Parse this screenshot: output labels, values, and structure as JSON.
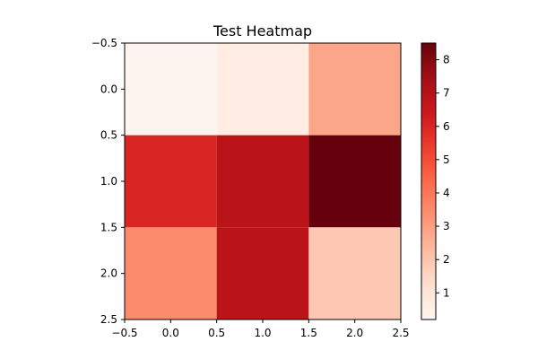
{
  "chart_data": {
    "type": "heatmap",
    "title": "Test Heatmap",
    "xlabel": "",
    "ylabel": "",
    "rows": 3,
    "cols": 3,
    "values": [
      [
        0.2,
        0.6,
        2.8
      ],
      [
        6.0,
        6.9,
        8.5
      ],
      [
        3.5,
        6.9,
        1.9
      ]
    ],
    "xlim": [
      -0.5,
      2.5
    ],
    "ylim": [
      2.5,
      -0.5
    ],
    "x_ticks": [
      -0.5,
      0.0,
      0.5,
      1.0,
      1.5,
      2.0,
      2.5
    ],
    "x_tick_labels": [
      "−0.5",
      "0.0",
      "0.5",
      "1.0",
      "1.5",
      "2.0",
      "2.5"
    ],
    "y_ticks": [
      -0.5,
      0.0,
      0.5,
      1.0,
      1.5,
      2.0,
      2.5
    ],
    "y_tick_labels": [
      "−0.5",
      "0.0",
      "0.5",
      "1.0",
      "1.5",
      "2.0",
      "2.5"
    ],
    "colormap": "Reds",
    "color_range": [
      0.2,
      8.5
    ],
    "colorbar_ticks": [
      1,
      2,
      3,
      4,
      5,
      6,
      7,
      8
    ],
    "colorbar_tick_labels": [
      "1",
      "2",
      "3",
      "4",
      "5",
      "6",
      "7",
      "8"
    ],
    "grid": false,
    "legend": "colorbar-right"
  }
}
